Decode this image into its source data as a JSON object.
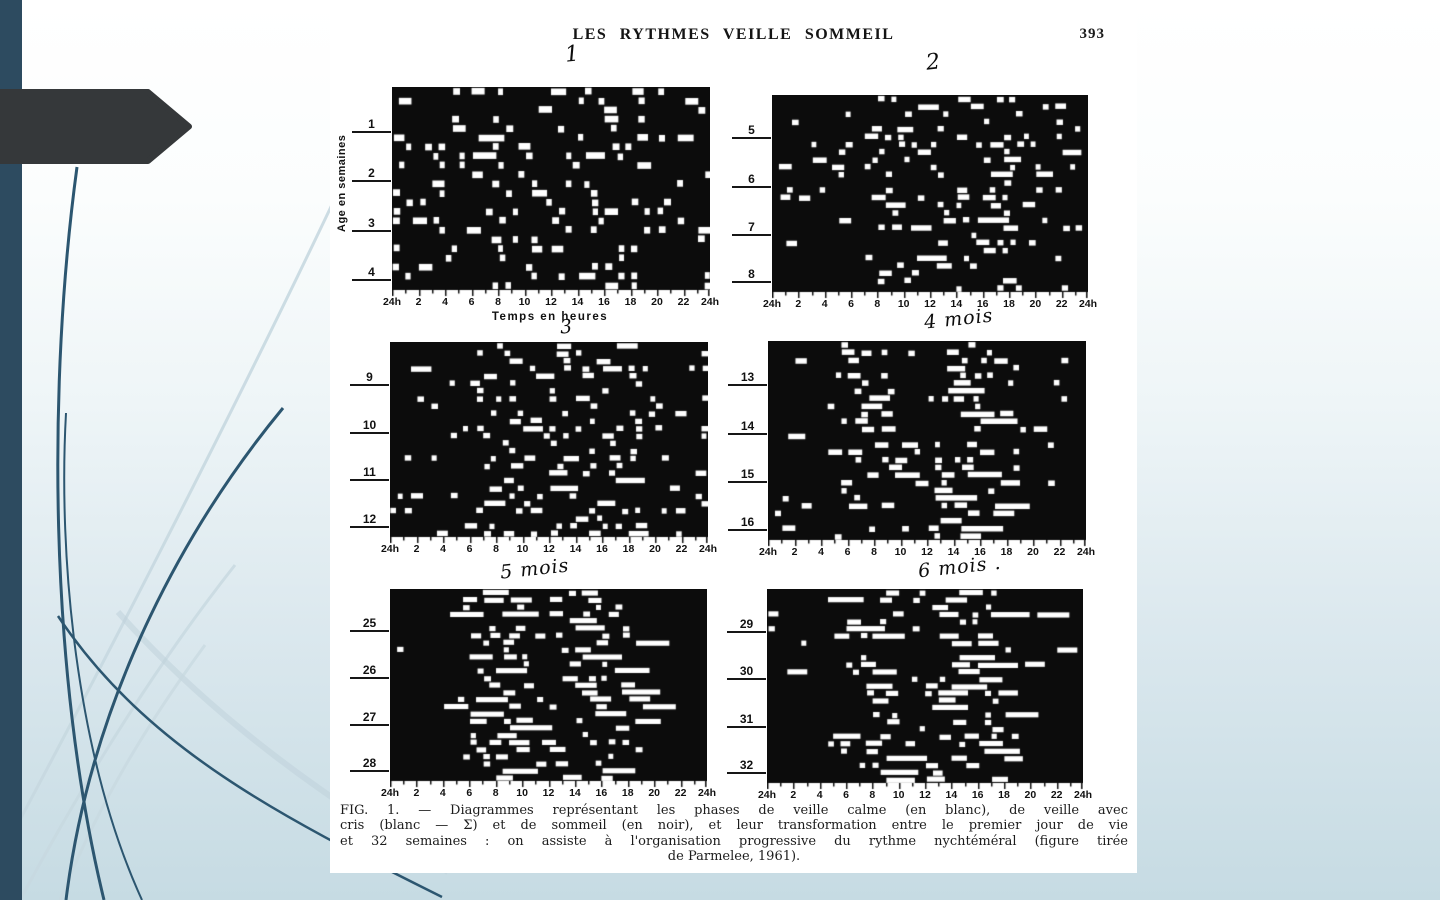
{
  "slide": {
    "sidebar_color": "#2d4b60",
    "arrow_color": "#35383a",
    "swirl_dark": "#2c5670",
    "swirl_light": "#c7d8e0",
    "background_top": "#ffffff",
    "background_bottom": "#c6dbe3"
  },
  "scan": {
    "header": {
      "title": "LES RYTHMES VEILLE SOMMEIL",
      "page_number": "393"
    },
    "axes": {
      "x_title": "Temps en heures",
      "y_title": "Age en semaines",
      "x_tick_labels": [
        "24h",
        "2",
        "4",
        "6",
        "8",
        "10",
        "12",
        "14",
        "16",
        "18",
        "20",
        "22",
        "24h"
      ]
    },
    "caption": {
      "lines": [
        "FIG. 1. — Diagrammes représentant les phases de veille calme (en blanc), de veille avec",
        "cris (blanc — Σ) et de sommeil (en noir), et leur transformation entre le premier jour de vie",
        "et 32 semaines : on assiste à l'organisation progressive du rythme nychtéméral (figure tirée",
        "de Parmelee, 1961)."
      ]
    }
  },
  "chart_data": {
    "type": "heatmap",
    "subtype": "sleep-wake actogram raster, 6 panels",
    "description": "Black = sommeil (sleep), white = veille (wakefulness). Each panel covers 4 weeks of age, one line per day, x = time of day 24h through 24h. Organization of the nychthemeral rhythm increases with age (Parmelee, 1961).",
    "x_unit": "time of day (hours)",
    "x_range": [
      0,
      24
    ],
    "y_unit": "age in weeks",
    "legend": {
      "black": "sommeil",
      "white": "veille calme / veille avec cris"
    },
    "panels": [
      {
        "annotation": "1",
        "weeks": [
          "1",
          "2",
          "3",
          "4"
        ],
        "rows": 22,
        "seed": 101,
        "mean_run": 1.4,
        "white_density_by_hour": [
          0.16,
          0.15,
          0.16,
          0.15,
          0.16,
          0.17,
          0.17,
          0.18,
          0.18,
          0.17,
          0.18,
          0.19,
          0.19,
          0.2,
          0.19,
          0.2,
          0.2,
          0.21,
          0.22,
          0.2,
          0.19,
          0.2,
          0.18,
          0.17
        ]
      },
      {
        "annotation": "2",
        "weeks": [
          "5",
          "6",
          "7",
          "8"
        ],
        "rows": 26,
        "seed": 202,
        "mean_run": 1.5,
        "white_density_by_hour": [
          0.09,
          0.1,
          0.09,
          0.1,
          0.12,
          0.13,
          0.16,
          0.22,
          0.3,
          0.32,
          0.22,
          0.15,
          0.14,
          0.16,
          0.2,
          0.26,
          0.3,
          0.32,
          0.28,
          0.18,
          0.12,
          0.1,
          0.08,
          0.07
        ]
      },
      {
        "annotation": "3",
        "weeks": [
          "9",
          "10",
          "11",
          "12"
        ],
        "rows": 26,
        "seed": 303,
        "mean_run": 1.5,
        "white_density_by_hour": [
          0.1,
          0.12,
          0.1,
          0.09,
          0.12,
          0.14,
          0.18,
          0.24,
          0.28,
          0.3,
          0.25,
          0.22,
          0.21,
          0.23,
          0.28,
          0.3,
          0.3,
          0.28,
          0.24,
          0.15,
          0.12,
          0.1,
          0.09,
          0.08
        ]
      },
      {
        "annotation": "4 mois",
        "weeks": [
          "13",
          "14",
          "15",
          "16"
        ],
        "rows": 26,
        "seed": 404,
        "mean_run": 2.0,
        "white_density_by_hour": [
          0.05,
          0.06,
          0.05,
          0.05,
          0.08,
          0.2,
          0.34,
          0.4,
          0.36,
          0.3,
          0.22,
          0.18,
          0.22,
          0.36,
          0.46,
          0.5,
          0.48,
          0.44,
          0.28,
          0.08,
          0.05,
          0.04,
          0.05,
          0.04
        ]
      },
      {
        "annotation": "5 mois",
        "weeks": [
          "25",
          "26",
          "27",
          "28"
        ],
        "rows": 27,
        "seed": 505,
        "mean_run": 2.8,
        "white_density_by_hour": [
          0.04,
          0.05,
          0.04,
          0.05,
          0.06,
          0.15,
          0.45,
          0.6,
          0.62,
          0.55,
          0.42,
          0.46,
          0.55,
          0.42,
          0.46,
          0.6,
          0.62,
          0.58,
          0.34,
          0.08,
          0.04,
          0.03,
          0.04,
          0.03
        ]
      },
      {
        "annotation": "6 mois .",
        "weeks": [
          "29",
          "30",
          "31",
          "32"
        ],
        "rows": 27,
        "seed": 606,
        "mean_run": 2.6,
        "white_density_by_hour": [
          0.04,
          0.04,
          0.05,
          0.04,
          0.05,
          0.12,
          0.3,
          0.55,
          0.6,
          0.45,
          0.26,
          0.32,
          0.52,
          0.55,
          0.5,
          0.32,
          0.5,
          0.58,
          0.44,
          0.12,
          0.05,
          0.04,
          0.03,
          0.03
        ]
      }
    ]
  }
}
